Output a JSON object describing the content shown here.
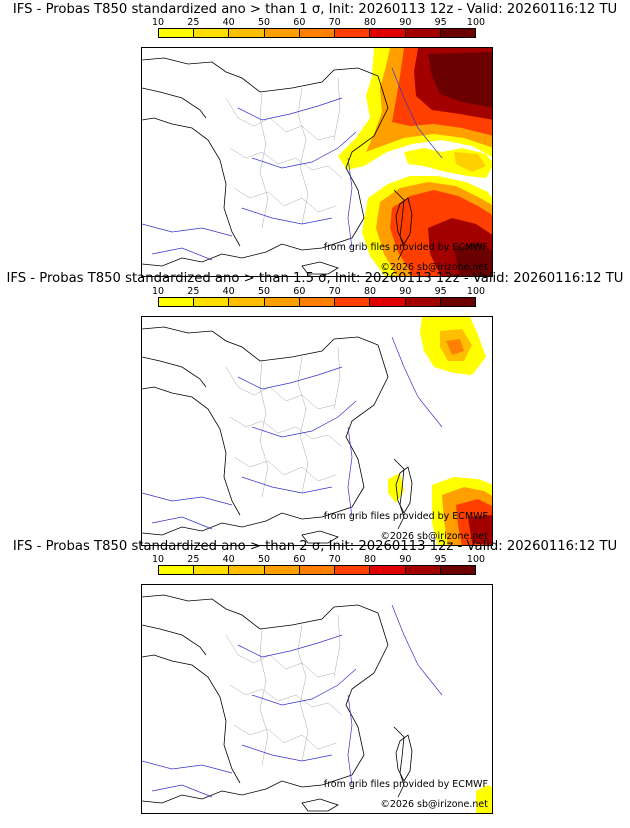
{
  "scale": {
    "ticks": [
      "10",
      "25",
      "40",
      "50",
      "60",
      "70",
      "80",
      "90",
      "95",
      "100"
    ],
    "colors": [
      "#ffff00",
      "#ffdf00",
      "#ffbf00",
      "#ff9f00",
      "#ff7f00",
      "#ff3f00",
      "#df0000",
      "#a30000",
      "#6b0000"
    ]
  },
  "panels": [
    {
      "title": "IFS - Probas T850  standardized ano > than 1 σ, Init: 20260113 12z - Valid: 20260116:12 TU",
      "credit_source": "from grib files provided by ECMWF",
      "credit_author": "©2026 sb@irizone.net"
    },
    {
      "title": "IFS - Probas T850  standardized ano > than 1.5 σ, Init: 20260113 12z - Valid: 20260116:12 TU",
      "credit_source": "from grib files provided by ECMWF",
      "credit_author": "©2026 sb@irizone.net"
    },
    {
      "title": "IFS - Probas T850  standardized ano > than 2 σ, Init: 20260113 12z - Valid: 20260116:12 TU",
      "credit_source": "from grib files provided by ECMWF",
      "credit_author": "©2026 sb@irizone.net"
    }
  ]
}
